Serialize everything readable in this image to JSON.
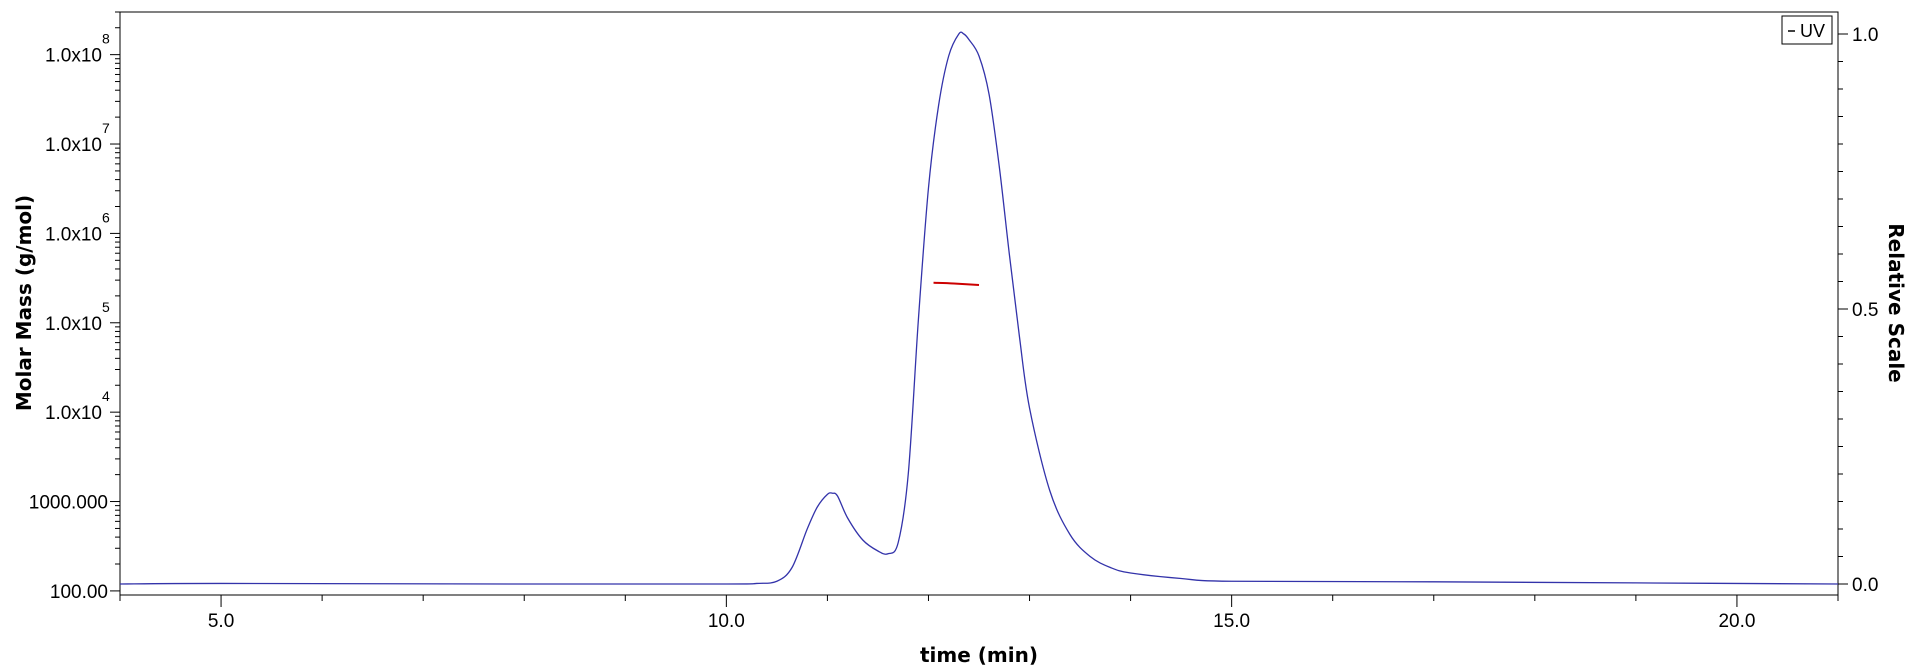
{
  "chart_data": {
    "type": "line",
    "xlabel": "time (min)",
    "ylabel_left": "Molar Mass (g/mol)",
    "ylabel_right": "Relative Scale",
    "xlim": [
      4.0,
      21.0
    ],
    "x_ticks": [
      {
        "value": 5,
        "label": "5.0"
      },
      {
        "value": 10,
        "label": "10.0"
      },
      {
        "value": 15,
        "label": "15.0"
      },
      {
        "value": 20,
        "label": "20.0"
      }
    ],
    "y_left_scale": "log",
    "y_left_lim": [
      90,
      300000000
    ],
    "y_left_ticks": [
      {
        "value": 100,
        "base": "100.00",
        "exp": ""
      },
      {
        "value": 1000,
        "base": "1000.000",
        "exp": ""
      },
      {
        "value": 10000,
        "base": "1.0x10",
        "exp": "4"
      },
      {
        "value": 100000,
        "base": "1.0x10",
        "exp": "5"
      },
      {
        "value": 1000000,
        "base": "1.0x10",
        "exp": "6"
      },
      {
        "value": 10000000,
        "base": "1.0x10",
        "exp": "7"
      },
      {
        "value": 100000000,
        "base": "1.0x10",
        "exp": "8"
      }
    ],
    "y_right_lim": [
      -0.02,
      1.04
    ],
    "y_right_ticks": [
      {
        "value": 0.0,
        "label": "0.0"
      },
      {
        "value": 0.5,
        "label": "0.5"
      },
      {
        "value": 1.0,
        "label": "1.0"
      }
    ],
    "legend": {
      "position": "top-right",
      "entries": [
        "UV"
      ]
    },
    "grid": false,
    "series": [
      {
        "name": "UV",
        "axis": "right",
        "color": "#3333aa",
        "x": [
          4.0,
          5.0,
          8.0,
          10.0,
          10.3,
          10.5,
          10.65,
          10.8,
          10.9,
          11.0,
          11.05,
          11.1,
          11.2,
          11.35,
          11.5,
          11.6,
          11.7,
          11.8,
          11.9,
          12.0,
          12.1,
          12.2,
          12.3,
          12.35,
          12.4,
          12.5,
          12.6,
          12.7,
          12.8,
          12.9,
          13.0,
          13.2,
          13.4,
          13.6,
          13.8,
          14.0,
          14.5,
          15.0,
          17.0,
          19.0,
          21.0
        ],
        "y": [
          0.0,
          0.001,
          0.0,
          0.0,
          0.001,
          0.005,
          0.03,
          0.1,
          0.14,
          0.163,
          0.165,
          0.16,
          0.12,
          0.08,
          0.06,
          0.055,
          0.075,
          0.2,
          0.48,
          0.72,
          0.87,
          0.96,
          1.0,
          1.0,
          0.99,
          0.96,
          0.89,
          0.76,
          0.6,
          0.45,
          0.32,
          0.17,
          0.09,
          0.05,
          0.03,
          0.02,
          0.01,
          0.005,
          0.004,
          0.002,
          0.0
        ]
      },
      {
        "name": "Molar Mass",
        "axis": "left",
        "color": "#cc0000",
        "x": [
          12.05,
          12.25,
          12.5
        ],
        "y": [
          280000,
          275000,
          265000
        ]
      }
    ]
  },
  "colors": {
    "uv": "#3333aa",
    "molar_mass": "#cc0000",
    "axes": "#000000",
    "background": "#ffffff"
  }
}
